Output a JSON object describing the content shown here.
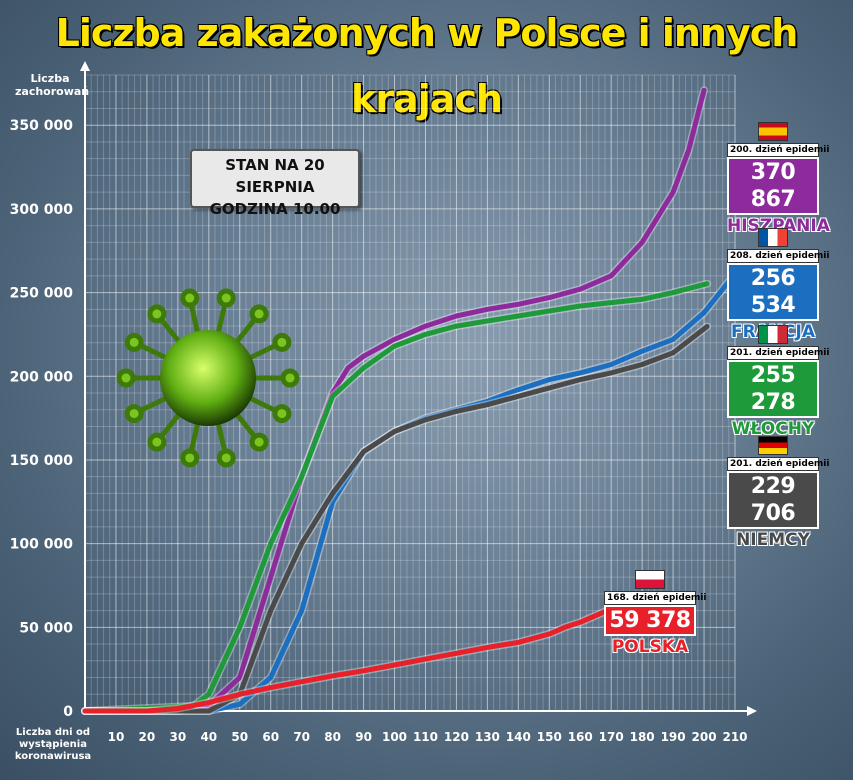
{
  "title": "Liczba zakażonych w Polsce i innych krajach",
  "ylabel": "Liczba zachorowań",
  "xlabel": "Liczba dni od wystąpienia koronawirusa",
  "status": {
    "line1": "STAN NA 20 SIERPNIA",
    "line2": "GODZINA 10.00"
  },
  "cards": {
    "spain": {
      "day": "200. dzień epidemii",
      "value": "370 867",
      "country": "HISZPANIA",
      "color": "#8e2b9c",
      "flag": "spain"
    },
    "france": {
      "day": "208. dzień epidemii",
      "value": "256 534",
      "country": "FRANCJA",
      "color": "#1c6fc0",
      "flag": "france"
    },
    "italy": {
      "day": "201. dzień epidemii",
      "value": "255 278",
      "country": "WŁOCHY",
      "color": "#1e9a3a",
      "flag": "italy"
    },
    "germany": {
      "day": "201. dzień epidemii",
      "value": "229 706",
      "country": "NIEMCY",
      "color": "#4a4a4a",
      "flag": "germany"
    },
    "poland": {
      "day": "168. dzień epidemii",
      "value": "59 378",
      "country": "POLSKA",
      "color": "#e8202a",
      "flag": "poland"
    }
  },
  "chart_data": {
    "type": "line",
    "xlim": [
      0,
      210
    ],
    "ylim": [
      0,
      380000
    ],
    "x_ticks": [
      10,
      20,
      30,
      40,
      50,
      60,
      70,
      80,
      90,
      100,
      110,
      120,
      130,
      140,
      150,
      160,
      170,
      180,
      190,
      200,
      210
    ],
    "y_ticks": [
      0,
      50000,
      100000,
      150000,
      200000,
      250000,
      300000,
      350000
    ],
    "y_tick_labels": [
      "0",
      "50 000",
      "100 000",
      "150 000",
      "200 000",
      "250 000",
      "300 000",
      "350 000"
    ],
    "grid": true,
    "series": [
      {
        "name": "HISZPANIA",
        "color": "#8e2b9c",
        "x": [
          0,
          30,
          40,
          50,
          60,
          70,
          80,
          85,
          90,
          100,
          110,
          120,
          130,
          140,
          150,
          160,
          170,
          180,
          190,
          195,
          200
        ],
        "y": [
          0,
          0,
          3000,
          20000,
          80000,
          140000,
          190000,
          205000,
          212000,
          222000,
          230000,
          236000,
          240000,
          243000,
          247000,
          252000,
          260000,
          280000,
          310000,
          335000,
          370867
        ]
      },
      {
        "name": "FRANCJA",
        "color": "#1c6fc0",
        "x": [
          0,
          40,
          50,
          60,
          70,
          80,
          90,
          100,
          110,
          120,
          130,
          140,
          150,
          160,
          170,
          180,
          190,
          200,
          208
        ],
        "y": [
          0,
          0,
          4000,
          20000,
          60000,
          125000,
          155000,
          167000,
          175000,
          180000,
          185000,
          192000,
          198000,
          202000,
          207000,
          215000,
          222000,
          238000,
          256534
        ]
      },
      {
        "name": "WŁOCHY",
        "color": "#1e9a3a",
        "x": [
          0,
          35,
          40,
          50,
          60,
          70,
          80,
          90,
          100,
          110,
          120,
          130,
          140,
          150,
          160,
          170,
          180,
          190,
          201
        ],
        "y": [
          0,
          3000,
          10000,
          50000,
          100000,
          140000,
          188000,
          205000,
          218000,
          225000,
          230000,
          233000,
          236000,
          239000,
          242000,
          244000,
          246000,
          250000,
          255278
        ]
      },
      {
        "name": "NIEMCY",
        "color": "#4a4a4a",
        "x": [
          0,
          40,
          50,
          60,
          70,
          80,
          90,
          100,
          110,
          120,
          130,
          140,
          150,
          160,
          170,
          180,
          190,
          201
        ],
        "y": [
          0,
          0,
          10000,
          60000,
          100000,
          130000,
          155000,
          167000,
          174000,
          179000,
          183000,
          188000,
          193000,
          198000,
          202000,
          207000,
          214000,
          229706
        ]
      },
      {
        "name": "POLSKA",
        "color": "#e8202a",
        "x": [
          0,
          20,
          30,
          40,
          50,
          60,
          70,
          80,
          90,
          100,
          110,
          120,
          130,
          140,
          150,
          155,
          160,
          168
        ],
        "y": [
          0,
          0,
          1500,
          5000,
          10000,
          14000,
          17500,
          21000,
          24000,
          27500,
          31000,
          34500,
          38000,
          41000,
          46000,
          50000,
          53000,
          59378
        ]
      }
    ]
  }
}
